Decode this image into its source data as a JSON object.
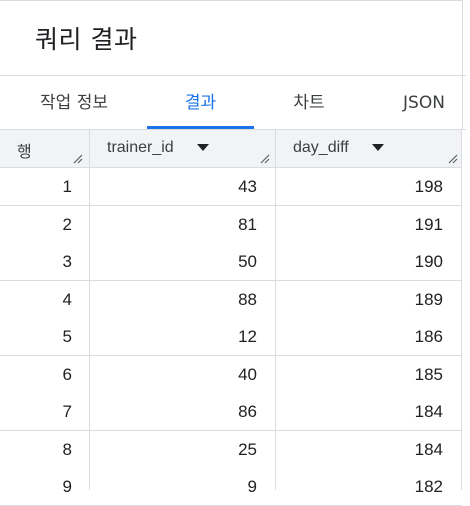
{
  "panel": {
    "title": "쿼리 결과"
  },
  "tabs": [
    {
      "label": "작업 정보",
      "active": false
    },
    {
      "label": "결과",
      "active": true
    },
    {
      "label": "차트",
      "active": false
    },
    {
      "label": "JSON",
      "active": false
    }
  ],
  "colors": {
    "accent": "#1a73e8",
    "header_bg": "#f1f3f4",
    "divider": "#dadce0",
    "text": "#202124"
  },
  "table": {
    "row_header": "행",
    "columns": [
      {
        "label": "trainer_id",
        "icon": "sort-dropdown-icon"
      },
      {
        "label": "day_diff",
        "icon": "sort-dropdown-icon"
      }
    ],
    "rows": [
      {
        "num": "1",
        "trainer_id": "43",
        "day_diff": "198"
      },
      {
        "num": "2",
        "trainer_id": "81",
        "day_diff": "191"
      },
      {
        "num": "3",
        "trainer_id": "50",
        "day_diff": "190"
      },
      {
        "num": "4",
        "trainer_id": "88",
        "day_diff": "189"
      },
      {
        "num": "5",
        "trainer_id": "12",
        "day_diff": "186"
      },
      {
        "num": "6",
        "trainer_id": "40",
        "day_diff": "185"
      },
      {
        "num": "7",
        "trainer_id": "86",
        "day_diff": "184"
      },
      {
        "num": "8",
        "trainer_id": "25",
        "day_diff": "184"
      },
      {
        "num": "9",
        "trainer_id": "9",
        "day_diff": "182"
      }
    ]
  }
}
